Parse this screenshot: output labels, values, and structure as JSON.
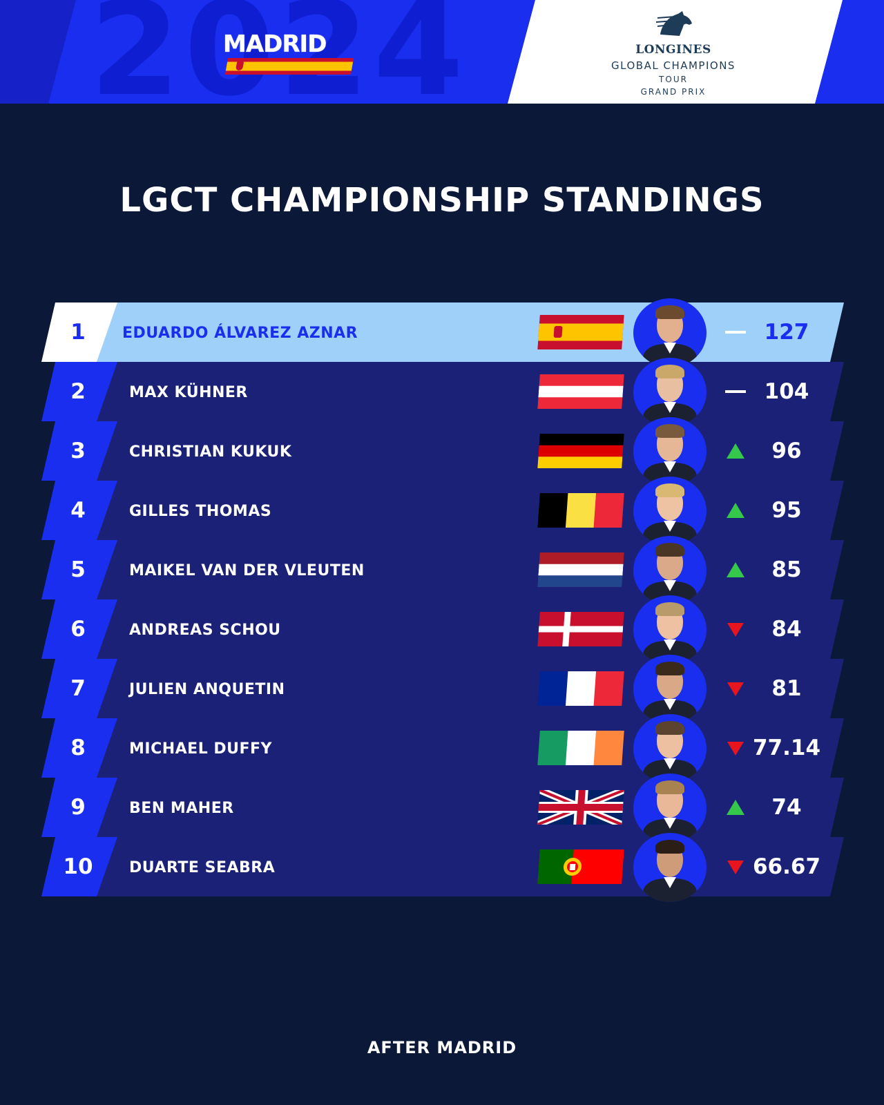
{
  "header": {
    "year_watermark": "2024",
    "event_city": "MADRID",
    "event_flag": "spain-flag",
    "logo": {
      "brand": "LONGINES",
      "line2": "GLOBAL CHAMPIONS",
      "line3": "TOUR",
      "line4": "GRAND PRIX",
      "icon": "horse-head-icon"
    }
  },
  "title": "LGCT CHAMPIONSHIP STANDINGS",
  "colors": {
    "background": "#0b1838",
    "accent_blue": "#1a2ef0",
    "row_bar": "#1c2178",
    "leader_bar": "#9fd0fa",
    "trend_up": "#35c84a",
    "trend_down": "#e8141e"
  },
  "standings": [
    {
      "rank": "1",
      "name": "EDUARDO ÁLVAREZ AZNAR",
      "country": "spain",
      "trend": "same",
      "points": "127",
      "hair": "#6b4a2e",
      "skin": "#e2b08f"
    },
    {
      "rank": "2",
      "name": "MAX KÜHNER",
      "country": "austria",
      "trend": "same",
      "points": "104",
      "hair": "#c9a86a",
      "skin": "#e8bfa0"
    },
    {
      "rank": "3",
      "name": "CHRISTIAN KUKUK",
      "country": "germany",
      "trend": "up",
      "points": "96",
      "hair": "#7a5a3c",
      "skin": "#e6b796"
    },
    {
      "rank": "4",
      "name": "GILLES THOMAS",
      "country": "belgium",
      "trend": "up",
      "points": "95",
      "hair": "#d8b872",
      "skin": "#eec3a4"
    },
    {
      "rank": "5",
      "name": "MAIKEL VAN DER VLEUTEN",
      "country": "netherlands",
      "trend": "up",
      "points": "85",
      "hair": "#4a3624",
      "skin": "#d9a98a"
    },
    {
      "rank": "6",
      "name": "ANDREAS SCHOU",
      "country": "denmark",
      "trend": "down",
      "points": "84",
      "hair": "#b99a6a",
      "skin": "#eec1a2"
    },
    {
      "rank": "7",
      "name": "JULIEN ANQUETIN",
      "country": "france",
      "trend": "down",
      "points": "81",
      "hair": "#3a2a1c",
      "skin": "#d8a887"
    },
    {
      "rank": "8",
      "name": "MICHAEL DUFFY",
      "country": "ireland",
      "trend": "down",
      "points": "77.14",
      "hair": "#5c4330",
      "skin": "#ecc0a0"
    },
    {
      "rank": "9",
      "name": "BEN MAHER",
      "country": "uk",
      "trend": "up",
      "points": "74",
      "hair": "#a88250",
      "skin": "#e8b898"
    },
    {
      "rank": "10",
      "name": "DUARTE SEABRA",
      "country": "portugal",
      "trend": "down",
      "points": "66.67",
      "hair": "#2a1e16",
      "skin": "#cf9c7a"
    }
  ],
  "footer": "AFTER MADRID"
}
